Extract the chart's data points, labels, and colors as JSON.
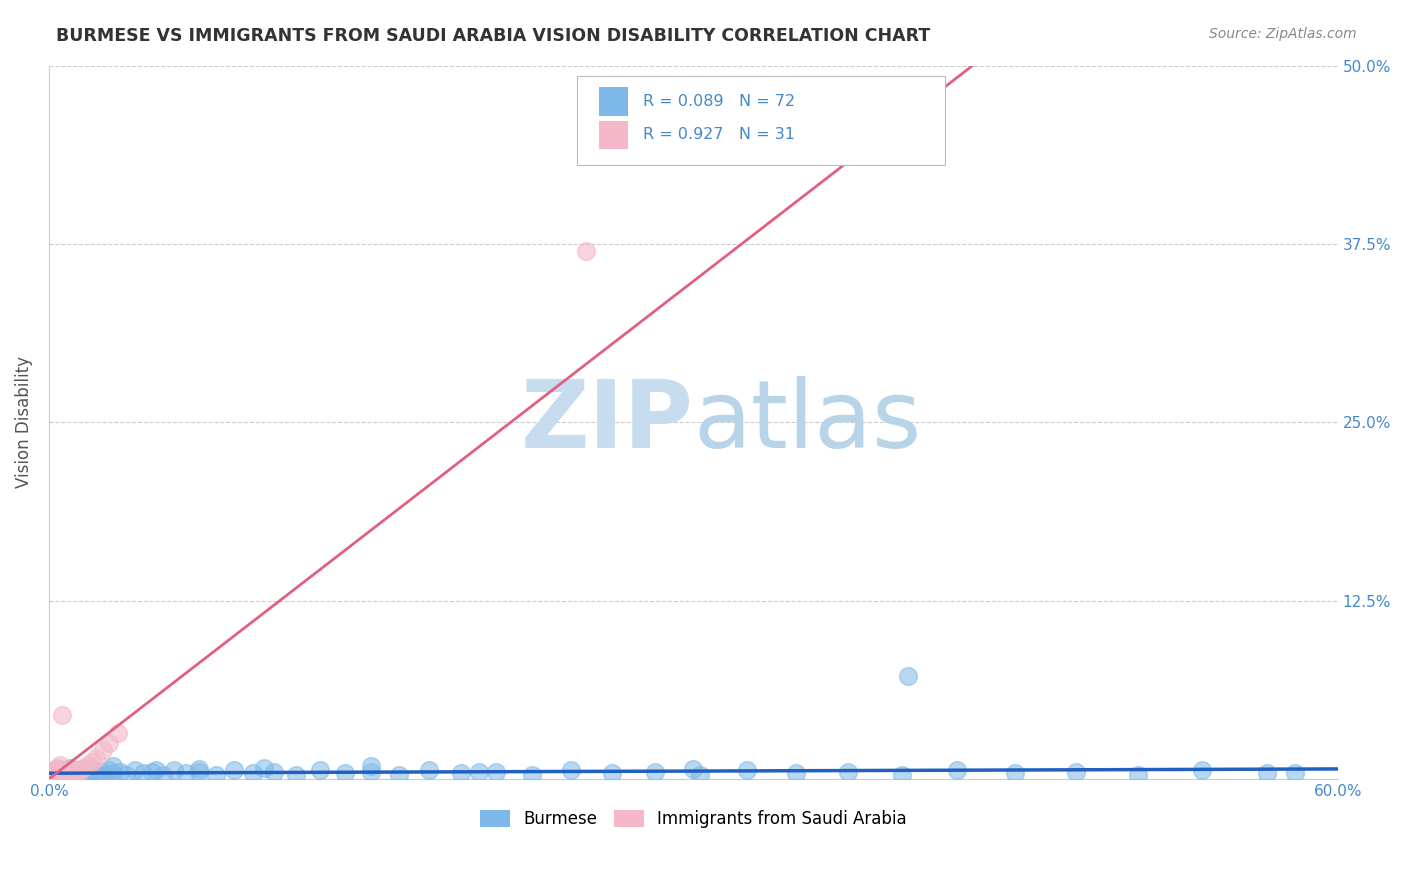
{
  "title": "BURMESE VS IMMIGRANTS FROM SAUDI ARABIA VISION DISABILITY CORRELATION CHART",
  "source": "Source: ZipAtlas.com",
  "ylabel": "Vision Disability",
  "xlim": [
    0.0,
    0.6
  ],
  "ylim": [
    0.0,
    0.5
  ],
  "xticks": [
    0.0,
    0.1,
    0.2,
    0.3,
    0.4,
    0.5,
    0.6
  ],
  "xticklabels": [
    "0.0%",
    "",
    "",
    "",
    "",
    "",
    "60.0%"
  ],
  "yticks": [
    0.0,
    0.125,
    0.25,
    0.375,
    0.5
  ],
  "yticklabels_right": [
    "",
    "12.5%",
    "25.0%",
    "37.5%",
    "50.0%"
  ],
  "grid_color": "#cccccc",
  "background_color": "#ffffff",
  "burmese_color": "#7EB8E8",
  "saudi_color": "#F4B8C8",
  "burmese_line_color": "#2060C0",
  "saudi_line_color": "#E06080",
  "title_color": "#333333",
  "axis_label_color": "#555555",
  "tick_color": "#4488CC",
  "watermark_color": "#DAEEF8",
  "burmese_x": [
    0.001,
    0.002,
    0.003,
    0.004,
    0.005,
    0.006,
    0.007,
    0.008,
    0.009,
    0.01,
    0.011,
    0.012,
    0.013,
    0.014,
    0.015,
    0.016,
    0.017,
    0.018,
    0.019,
    0.02,
    0.022,
    0.024,
    0.026,
    0.028,
    0.03,
    0.033,
    0.036,
    0.04,
    0.044,
    0.048,
    0.053,
    0.058,
    0.064,
    0.07,
    0.078,
    0.086,
    0.095,
    0.105,
    0.115,
    0.126,
    0.138,
    0.15,
    0.163,
    0.177,
    0.192,
    0.208,
    0.225,
    0.243,
    0.262,
    0.282,
    0.303,
    0.325,
    0.348,
    0.372,
    0.397,
    0.423,
    0.45,
    0.478,
    0.507,
    0.537,
    0.567,
    0.01,
    0.02,
    0.03,
    0.05,
    0.07,
    0.1,
    0.15,
    0.2,
    0.3,
    0.4,
    0.58
  ],
  "burmese_y": [
    0.003,
    0.005,
    0.004,
    0.006,
    0.003,
    0.005,
    0.004,
    0.006,
    0.003,
    0.005,
    0.004,
    0.006,
    0.003,
    0.005,
    0.004,
    0.006,
    0.003,
    0.005,
    0.004,
    0.006,
    0.004,
    0.005,
    0.003,
    0.006,
    0.004,
    0.005,
    0.003,
    0.006,
    0.004,
    0.005,
    0.003,
    0.006,
    0.004,
    0.005,
    0.003,
    0.006,
    0.004,
    0.005,
    0.003,
    0.006,
    0.004,
    0.005,
    0.003,
    0.006,
    0.004,
    0.005,
    0.003,
    0.006,
    0.004,
    0.005,
    0.003,
    0.006,
    0.004,
    0.005,
    0.003,
    0.006,
    0.004,
    0.005,
    0.003,
    0.006,
    0.004,
    0.008,
    0.007,
    0.009,
    0.006,
    0.007,
    0.008,
    0.009,
    0.005,
    0.007,
    0.072,
    0.004
  ],
  "saudi_x": [
    0.001,
    0.002,
    0.003,
    0.004,
    0.005,
    0.006,
    0.007,
    0.008,
    0.009,
    0.01,
    0.011,
    0.012,
    0.013,
    0.014,
    0.015,
    0.016,
    0.018,
    0.02,
    0.022,
    0.025,
    0.028,
    0.032,
    0.002,
    0.003,
    0.004,
    0.005,
    0.006,
    0.007,
    0.009,
    0.011,
    0.25
  ],
  "saudi_y": [
    0.002,
    0.003,
    0.004,
    0.003,
    0.005,
    0.003,
    0.004,
    0.005,
    0.003,
    0.004,
    0.005,
    0.004,
    0.006,
    0.005,
    0.007,
    0.008,
    0.01,
    0.012,
    0.015,
    0.02,
    0.025,
    0.032,
    0.005,
    0.007,
    0.008,
    0.01,
    0.045,
    0.003,
    0.004,
    0.006,
    0.37
  ],
  "pink_line_x": [
    0.0,
    0.43
  ],
  "pink_line_y": [
    0.0,
    0.5
  ],
  "blue_line_x": [
    0.0,
    0.6
  ],
  "blue_line_y": [
    0.004,
    0.007
  ]
}
